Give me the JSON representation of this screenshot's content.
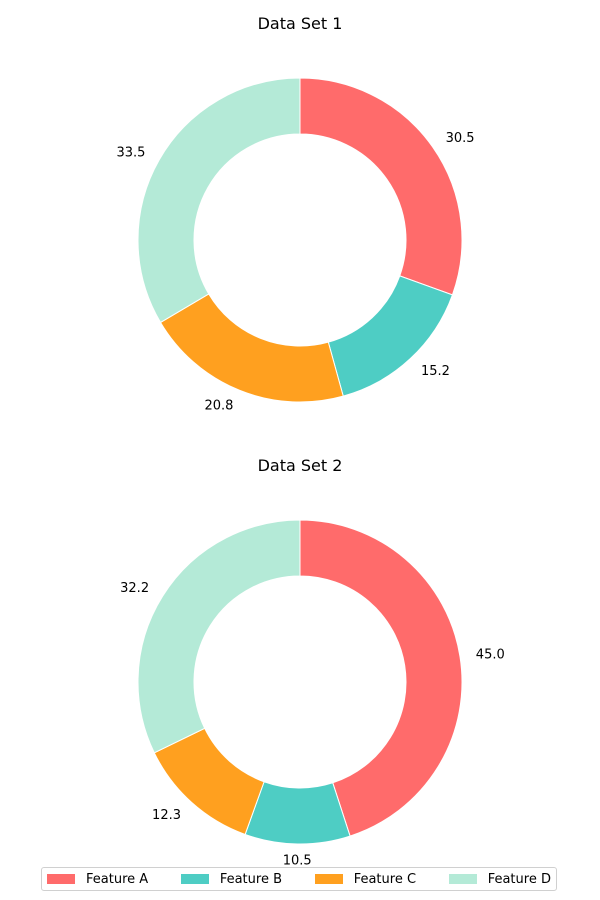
{
  "chart_data": [
    {
      "type": "pie",
      "title": "Data Set 1",
      "categories": [
        "Feature A",
        "Feature B",
        "Feature C",
        "Feature D"
      ],
      "values": [
        30.5,
        15.2,
        20.8,
        33.5
      ],
      "value_labels": [
        "30.5",
        "15.2",
        "20.8",
        "33.5"
      ],
      "style": "donut",
      "start": "top",
      "direction": "clockwise"
    },
    {
      "type": "pie",
      "title": "Data Set 2",
      "categories": [
        "Feature A",
        "Feature B",
        "Feature C",
        "Feature D"
      ],
      "values": [
        45.0,
        10.5,
        12.3,
        32.2
      ],
      "value_labels": [
        "45.0",
        "10.5",
        "12.3",
        "32.2"
      ],
      "style": "donut",
      "start": "top",
      "direction": "clockwise"
    }
  ],
  "legend": {
    "placement": "bottom",
    "items": [
      {
        "label": "Feature A",
        "color": "#FF6B6B"
      },
      {
        "label": "Feature B",
        "color": "#4ECDC4"
      },
      {
        "label": "Feature C",
        "color": "#FFA01F"
      },
      {
        "label": "Feature D",
        "color": "#B4EAD7"
      }
    ]
  }
}
